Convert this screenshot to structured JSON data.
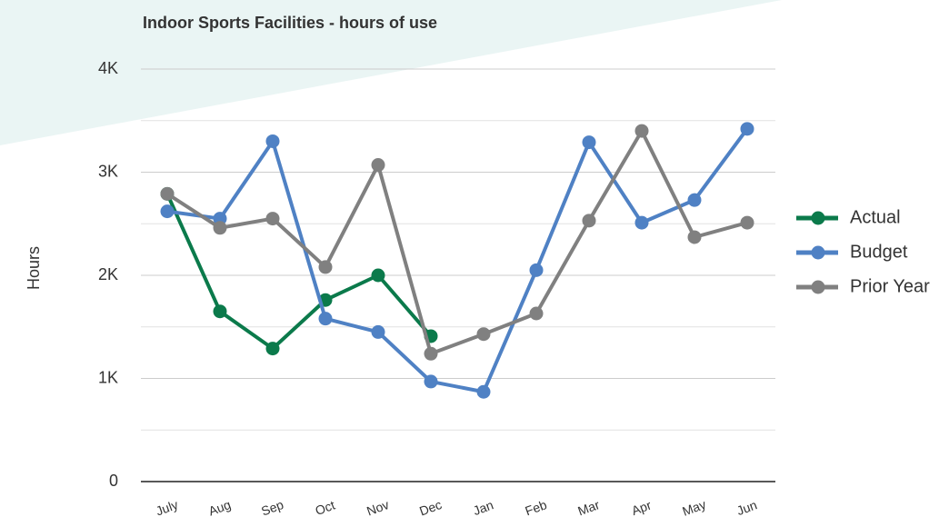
{
  "chart_data": {
    "type": "line",
    "title": "Indoor Sports Facilities - hours of use",
    "y_label": "Hours",
    "categories": [
      "July",
      "Aug",
      "Sep",
      "Oct",
      "Nov",
      "Dec",
      "Jan",
      "Feb",
      "Mar",
      "Apr",
      "May",
      "Jun"
    ],
    "series": [
      {
        "name": "Actual",
        "color": "#0b7a4b",
        "values": [
          2790,
          1650,
          1290,
          1760,
          2000,
          1410,
          null,
          null,
          null,
          null,
          null,
          null
        ]
      },
      {
        "name": "Budget",
        "color": "#4f81c4",
        "values": [
          2620,
          2550,
          3300,
          1580,
          1450,
          970,
          870,
          2050,
          3290,
          2510,
          2730,
          3420
        ]
      },
      {
        "name": "Prior Year",
        "color": "#808080",
        "values": [
          2790,
          2460,
          2550,
          2080,
          3070,
          1240,
          1430,
          1630,
          2530,
          3400,
          2370,
          2510
        ]
      }
    ],
    "ylim": [
      0,
      4000
    ],
    "yticks": [
      0,
      {
        "value": 1000,
        "label": "1K"
      },
      {
        "value": 2000,
        "label": "2K"
      },
      {
        "value": 3000,
        "label": "3K"
      },
      {
        "value": 4000,
        "label": "4K"
      }
    ],
    "grid": true,
    "minor_grid": true,
    "legend": "right"
  }
}
